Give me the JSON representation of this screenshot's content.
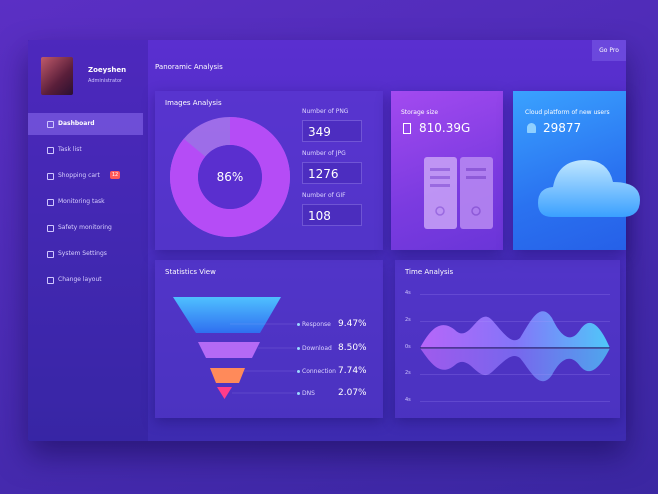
{
  "user": {
    "name": "Zoeyshen",
    "role": "Administrator"
  },
  "menu": [
    "Dashboard",
    "Task list",
    "Shopping cart",
    "Monitoring task",
    "Safety monitoring",
    "System Settings",
    "Change layout"
  ],
  "cart_badge": "12",
  "go_pro": "Go Pro",
  "page_title": "Panoramic Analysis",
  "images_analysis": {
    "title": "Images Analysis",
    "percent": {
      "value": 86,
      "label": "86%"
    },
    "stats": [
      {
        "label": "Number of PNG",
        "value": 349
      },
      {
        "label": "Number of JPG",
        "value": 1276
      },
      {
        "label": "Number of GIF",
        "value": 108
      }
    ]
  },
  "storage": {
    "label": "Storage size",
    "value": "810.39G"
  },
  "cloud": {
    "label": "Cloud platform of new users",
    "value": 29877
  },
  "statistics": {
    "title": "Statistics View",
    "items": [
      {
        "name": "Response",
        "value": "9.47%"
      },
      {
        "name": "Download",
        "value": "8.50%"
      },
      {
        "name": "Connection",
        "value": "7.74%"
      },
      {
        "name": "DNS",
        "value": "2.07%"
      }
    ]
  },
  "time_analysis": {
    "title": "Time Analysis",
    "axis": [
      "4s",
      "2s",
      "0s",
      "2s",
      "4s"
    ]
  }
}
